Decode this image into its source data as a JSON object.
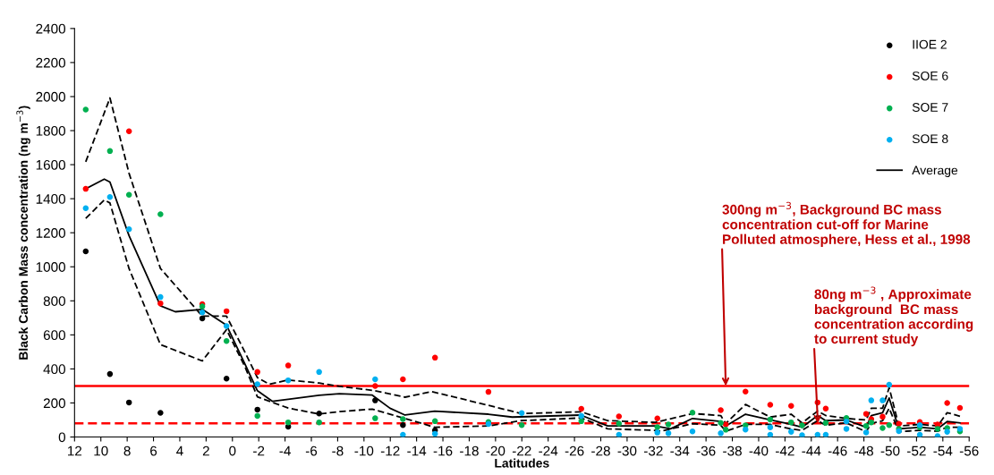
{
  "chart_data": {
    "type": "scatter",
    "xlabel": "Latitudes",
    "ylabel": "Black Carbon Mass concentration (ng m$^{−3}$)",
    "xlim": [
      12,
      -56
    ],
    "xticks": [
      12,
      10,
      8,
      6,
      4,
      2,
      0,
      -2,
      -4,
      -6,
      -8,
      -10,
      -12,
      -14,
      -16,
      -18,
      -20,
      -22,
      -24,
      -26,
      -28,
      -30,
      -32,
      -34,
      -36,
      -38,
      -40,
      -42,
      -44,
      -46,
      -48,
      -50,
      -52,
      -54,
      -56
    ],
    "ylim": [
      0,
      2400
    ],
    "yticks": [
      0,
      200,
      400,
      600,
      800,
      1000,
      1200,
      1400,
      1600,
      1800,
      2000,
      2200,
      2400
    ],
    "grid": false,
    "legend": "top right",
    "marker": "circle",
    "series": [
      {
        "name": "IIOE 2",
        "color": "#000000",
        "x": [
          11.15,
          9.31,
          7.86,
          5.47,
          2.29,
          0.45,
          -1.9,
          -4.24,
          -6.59,
          -10.85,
          -12.96,
          -15.4
        ],
        "values": [
          1091,
          370,
          203,
          142,
          697,
          343,
          161,
          61,
          138,
          215,
          70,
          39
        ]
      },
      {
        "name": "SOE 6",
        "color": "#ff0000",
        "x": [
          11.15,
          7.86,
          5.47,
          2.29,
          0.45,
          -1.9,
          -4.24,
          -10.85,
          -12.96,
          -15.4,
          -19.46,
          -26.52,
          -29.38,
          -32.3,
          -37.12,
          -37.5,
          -39.0,
          -40.88,
          -42.47,
          -44.48,
          -45.1,
          -48.17,
          -48.56,
          -49.42,
          -50.66,
          -52.25,
          -53.6,
          -54.33,
          -55.3
        ],
        "values": [
          1458,
          1796,
          785,
          780,
          739,
          382,
          420,
          300,
          339,
          466,
          265,
          166,
          121,
          109,
          158,
          74,
          267,
          189,
          183,
          203,
          167,
          136,
          105,
          119,
          78,
          88,
          74,
          200,
          171
        ]
      },
      {
        "name": "SOE 7",
        "color": "#00b050",
        "x": [
          11.15,
          9.31,
          7.86,
          5.47,
          2.29,
          0.45,
          -1.9,
          -4.24,
          -6.59,
          -10.85,
          -12.96,
          -15.4,
          -19.46,
          -21.99,
          -26.52,
          -29.38,
          -32.3,
          -33.14,
          -34.97,
          -37.12,
          -37.5,
          -39.0,
          -40.88,
          -42.47,
          -43.3,
          -45.1,
          -46.67,
          -48.17,
          -48.56,
          -49.42,
          -49.92,
          -50.66,
          -52.25,
          -53.6,
          -54.33,
          -55.3
        ],
        "values": [
          1924,
          1680,
          1423,
          1309,
          767,
          564,
          124,
          86,
          86,
          110,
          105,
          93,
          88,
          70,
          93,
          79,
          58,
          74,
          143,
          83,
          43,
          69,
          103,
          86,
          69,
          83,
          112,
          65,
          86,
          53,
          70,
          48,
          57,
          48,
          53,
          33
        ]
      },
      {
        "name": "SOE 8",
        "color": "#00b0f0",
        "x": [
          11.15,
          9.31,
          7.86,
          5.47,
          2.29,
          0.45,
          -1.9,
          -4.24,
          -6.59,
          -10.85,
          -12.96,
          -15.4,
          -19.46,
          -21.99,
          -26.52,
          -29.38,
          -32.3,
          -33.14,
          -34.97,
          -37.12,
          -39.0,
          -40.88,
          -40.88,
          -42.47,
          -43.3,
          -44.48,
          -45.1,
          -46.67,
          -46.67,
          -48.17,
          -48.56,
          -49.42,
          -49.92,
          -50.66,
          -52.25,
          -52.25,
          -53.6,
          -54.33,
          -55.3
        ],
        "values": [
          1344,
          1410,
          1221,
          822,
          732,
          652,
          310,
          333,
          382,
          339,
          13,
          19,
          76,
          141,
          124,
          13,
          26,
          22,
          33,
          22,
          44,
          57,
          13,
          31,
          10,
          13,
          13,
          91,
          48,
          27,
          215,
          215,
          307,
          34,
          70,
          13,
          5,
          31,
          48
        ]
      },
      {
        "name": "Average",
        "color": "#000000",
        "type": "line",
        "line_style": "solid",
        "marker": "none",
        "x": [
          11.15,
          9.74,
          9.31,
          7.86,
          5.47,
          4.34,
          2.29,
          0.45,
          -0.95,
          -1.9,
          -3.03,
          -4.24,
          -6.59,
          -8.13,
          -10.63,
          -11.98,
          -13.12,
          -15.38,
          -19.46,
          -21.27,
          -26.48,
          -28.52,
          -32.14,
          -33.3,
          -34.97,
          -37.12,
          -37.5,
          -39.0,
          -40.88,
          -42.47,
          -43.3,
          -44.48,
          -45.1,
          -46.67,
          -48.17,
          -48.56,
          -49.42,
          -49.92,
          -50.66,
          -52.25,
          -53.6,
          -54.33,
          -55.3
        ],
        "values": [
          1458,
          1515,
          1498,
          1183,
          771,
          736,
          750,
          657,
          429,
          272,
          210,
          222,
          245,
          254,
          246,
          169,
          129,
          152,
          134,
          117,
          129,
          65,
          65,
          48,
          109,
          91,
          65,
          134,
          100,
          74,
          57,
          126,
          96,
          100,
          57,
          126,
          143,
          229,
          48,
          57,
          48,
          91,
          83
        ]
      },
      {
        "color": "#000000",
        "type": "line",
        "line_style": "dashed",
        "marker": "none",
        "x": [
          11.15,
          9.31,
          7.86,
          5.47,
          2.29,
          0.45,
          -0.95,
          -1.9,
          -2.8,
          -4.24,
          -6.59,
          -8.13,
          -10.85,
          -13.12,
          -15.15,
          -19.46,
          -21.95,
          -26.52,
          -28.52,
          -32.14,
          -34.97,
          -37.12,
          -37.5,
          -39.0,
          -40.88,
          -42.47,
          -43.3,
          -44.48,
          -45.1,
          -46.67,
          -48.17,
          -48.56,
          -49.42,
          -49.92,
          -50.66,
          -52.25,
          -53.6,
          -54.33,
          -55.3
        ],
        "values": [
          1617,
          1992,
          1550,
          990,
          710,
          710,
          499,
          349,
          310,
          335,
          317,
          298,
          272,
          234,
          267,
          186,
          138,
          148,
          96,
          86,
          138,
          126,
          79,
          191,
          117,
          134,
          83,
          152,
          126,
          109,
          100,
          169,
          169,
          290,
          65,
          74,
          65,
          143,
          122
        ]
      },
      {
        "color": "#000000",
        "type": "line",
        "line_style": "dashed",
        "marker": "none",
        "x": [
          11.15,
          9.74,
          9.31,
          7.86,
          5.47,
          2.29,
          0.45,
          -0.95,
          -1.9,
          -4.24,
          -6.59,
          -8.13,
          -10.63,
          -13.12,
          -15.38,
          -19.46,
          -21.95,
          -26.52,
          -28.52,
          -32.14,
          -32.6,
          -34.97,
          -37.12,
          -37.5,
          -39.0,
          -40.88,
          -42.47,
          -43.3,
          -44.48,
          -45.1,
          -46.67,
          -48.17,
          -48.56,
          -49.42,
          -49.92,
          -50.66,
          -52.25,
          -53.6,
          -54.33,
          -55.3
        ],
        "values": [
          1284,
          1393,
          1375,
          990,
          543,
          447,
          631,
          413,
          236,
          170,
          135,
          149,
          164,
          109,
          57,
          65,
          96,
          112,
          48,
          39,
          34,
          78,
          69,
          34,
          74,
          74,
          48,
          39,
          96,
          69,
          83,
          31,
          79,
          96,
          169,
          31,
          39,
          34,
          57,
          57
        ]
      }
    ],
    "ref_lines": [
      {
        "axis": "y",
        "value": 300,
        "color": "#ff0000",
        "line_style": "solid"
      },
      {
        "axis": "y",
        "value": 80,
        "color": "#ff0000",
        "line_style": "dashed"
      }
    ],
    "annotations": [
      {
        "text": "300ng m$^{−3}$, Background BC mass\nconcentration cut-off for Marine\nPolluted atmosphere, Hess et al., 1998",
        "x": -37.5,
        "y": 300
      },
      {
        "text": "80ng m$^{−3}$ , Approximate\nbackground  BC mass\nconcentration according\nto current study",
        "x": -44.5,
        "y": 80
      }
    ]
  }
}
